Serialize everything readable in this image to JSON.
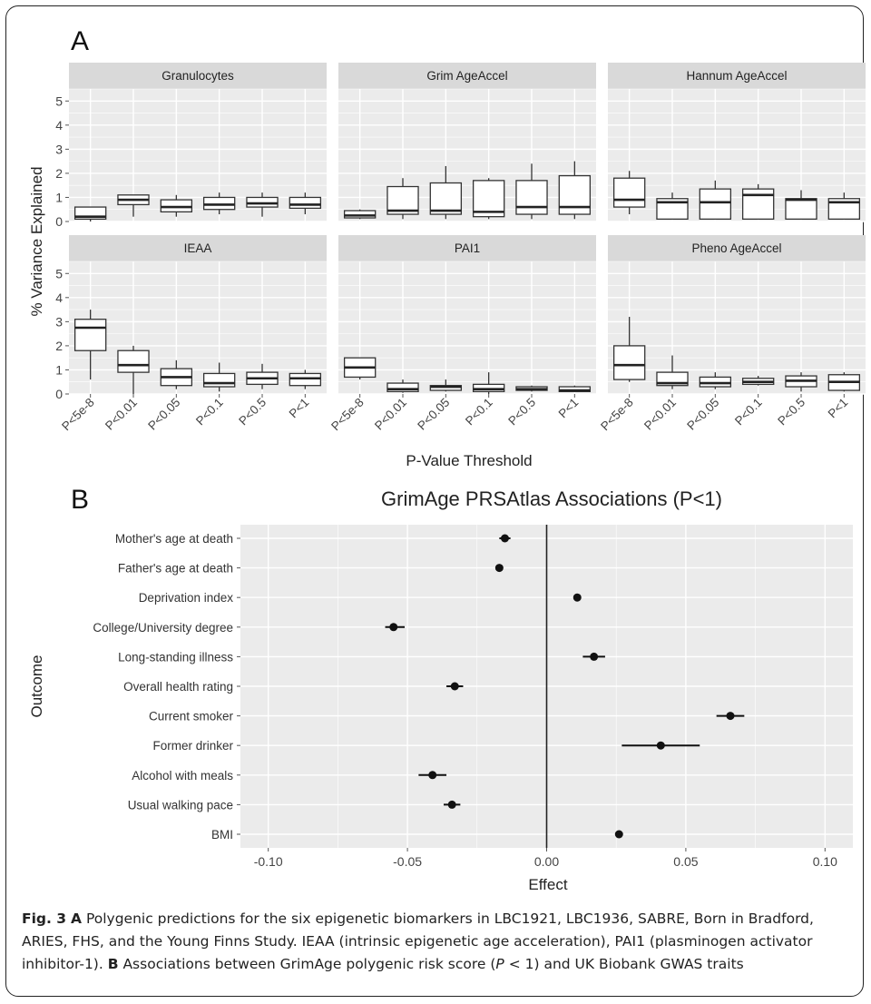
{
  "panel_a": {
    "letter": "A",
    "ylabel": "% Variance Explained",
    "xlabel": "P-Value Threshold",
    "y_ticks": [
      "0",
      "1",
      "2",
      "3",
      "4",
      "5"
    ],
    "x_ticks": [
      "P<5e-8",
      "P<0.01",
      "P<0.05",
      "P<0.1",
      "P<0.5",
      "P<1"
    ]
  },
  "panel_b": {
    "letter": "B",
    "title": "GrimAge PRSAtlas Associations (P<1)",
    "xlabel": "Effect",
    "ylabel": "Outcome",
    "x_ticks": [
      "-0.10",
      "-0.05",
      "0.00",
      "0.05",
      "0.10"
    ]
  },
  "chart_data": [
    {
      "type": "box",
      "panel": "A",
      "facets": [
        "Granulocytes",
        "Grim AgeAccel",
        "Hannum AgeAccel",
        "IEAA",
        "PAI1",
        "Pheno AgeAccel"
      ],
      "categories": [
        "P<5e-8",
        "P<0.01",
        "P<0.05",
        "P<0.1",
        "P<0.5",
        "P<1"
      ],
      "ylim": [
        0,
        5.5
      ],
      "series": [
        {
          "name": "Granulocytes",
          "boxes": [
            [
              0,
              0.1,
              0.2,
              0.6,
              0.6
            ],
            [
              0.2,
              0.7,
              0.9,
              1.1,
              1.1
            ],
            [
              0.2,
              0.4,
              0.6,
              0.9,
              1.1
            ],
            [
              0.3,
              0.5,
              0.7,
              1.0,
              1.2
            ],
            [
              0.2,
              0.6,
              0.75,
              1.0,
              1.2
            ],
            [
              0.3,
              0.55,
              0.7,
              1.0,
              1.2
            ]
          ]
        },
        {
          "name": "Grim AgeAccel",
          "boxes": [
            [
              0.1,
              0.15,
              0.25,
              0.45,
              0.5
            ],
            [
              0.1,
              0.3,
              0.45,
              1.45,
              1.8
            ],
            [
              0.1,
              0.3,
              0.45,
              1.6,
              2.3
            ],
            [
              0.1,
              0.2,
              0.4,
              1.7,
              1.8
            ],
            [
              0.1,
              0.3,
              0.6,
              1.7,
              2.4
            ],
            [
              0.1,
              0.3,
              0.6,
              1.9,
              2.5
            ]
          ]
        },
        {
          "name": "Hannum AgeAccel",
          "boxes": [
            [
              0.3,
              0.6,
              0.9,
              1.8,
              2.1
            ],
            [
              0.1,
              0.1,
              0.8,
              0.95,
              1.2
            ],
            [
              0.1,
              0.1,
              0.8,
              1.35,
              1.7
            ],
            [
              0.1,
              0.1,
              1.1,
              1.35,
              1.55
            ],
            [
              0.1,
              0.1,
              0.9,
              0.95,
              1.3
            ],
            [
              0.1,
              0.1,
              0.8,
              0.95,
              1.2
            ]
          ]
        },
        {
          "name": "IEAA",
          "boxes": [
            [
              0.6,
              1.8,
              2.75,
              3.1,
              3.5
            ],
            [
              0.0,
              0.9,
              1.2,
              1.8,
              2.0
            ],
            [
              0.2,
              0.35,
              0.7,
              1.05,
              1.4
            ],
            [
              0.1,
              0.3,
              0.45,
              0.85,
              1.3
            ],
            [
              0.2,
              0.4,
              0.65,
              0.9,
              1.25
            ],
            [
              0.2,
              0.35,
              0.65,
              0.85,
              1.0
            ]
          ]
        },
        {
          "name": "PAI1",
          "boxes": [
            [
              0.6,
              0.7,
              1.1,
              1.5,
              1.5
            ],
            [
              0.05,
              0.1,
              0.2,
              0.45,
              0.6
            ],
            [
              0.1,
              0.15,
              0.3,
              0.35,
              0.6
            ],
            [
              0.0,
              0.1,
              0.2,
              0.4,
              0.9
            ],
            [
              0.1,
              0.15,
              0.2,
              0.3,
              0.35
            ],
            [
              0.1,
              0.1,
              0.15,
              0.3,
              0.35
            ]
          ]
        },
        {
          "name": "Pheno AgeAccel",
          "boxes": [
            [
              0.5,
              0.6,
              1.2,
              2.0,
              3.2
            ],
            [
              0.2,
              0.35,
              0.45,
              0.9,
              1.6
            ],
            [
              0.2,
              0.3,
              0.45,
              0.7,
              0.9
            ],
            [
              0.35,
              0.4,
              0.5,
              0.65,
              0.75
            ],
            [
              0.1,
              0.3,
              0.55,
              0.75,
              0.9
            ],
            [
              0.1,
              0.15,
              0.5,
              0.8,
              0.9
            ]
          ]
        }
      ]
    },
    {
      "type": "scatter",
      "panel": "B",
      "title": "GrimAge PRSAtlas Associations (P<1)",
      "xlabel": "Effect",
      "ylabel": "Outcome",
      "xlim": [
        -0.11,
        0.11
      ],
      "categories": [
        "Mother's age at death",
        "Father's age at death",
        "Deprivation index",
        "College/University degree",
        "Long-standing illness",
        "Overall health rating",
        "Current smoker",
        "Former drinker",
        "Alcohol with meals",
        "Usual walking pace",
        "BMI"
      ],
      "effect": [
        -0.015,
        -0.017,
        0.011,
        -0.055,
        0.017,
        -0.033,
        0.066,
        0.041,
        -0.041,
        -0.034,
        0.026
      ],
      "ci_low": [
        -0.017,
        -0.018,
        0.01,
        -0.058,
        0.013,
        -0.036,
        0.061,
        0.027,
        -0.046,
        -0.037,
        0.025
      ],
      "ci_high": [
        -0.013,
        -0.016,
        0.012,
        -0.051,
        0.021,
        -0.03,
        0.071,
        0.055,
        -0.036,
        -0.031,
        0.027
      ]
    }
  ],
  "caption": {
    "fig_label": "Fig. 3",
    "part_a_letter": "A",
    "part_a_text": " Polygenic predictions for the six epigenetic biomarkers in LBC1921, LBC1936, SABRE, Born in Bradford, ARIES, FHS, and the Young Finns Study. IEAA (intrinsic epigenetic age acceleration), PAI1 (plasminogen activator inhibitor-1). ",
    "part_b_letter": "B",
    "part_b_text_1": " Associations between GrimAge polygenic risk score (",
    "part_b_italic": "P",
    "part_b_text_2": " < 1) and UK Biobank GWAS traits"
  }
}
